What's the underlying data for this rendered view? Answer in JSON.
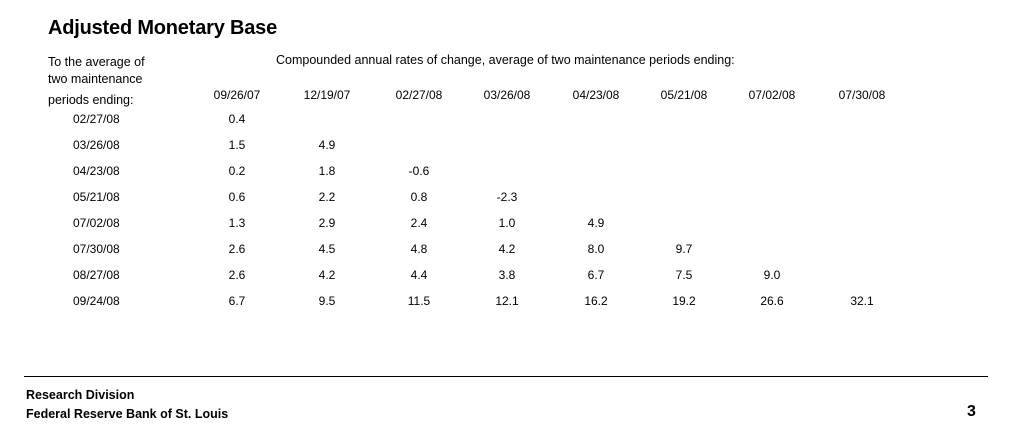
{
  "title": "Adjusted Monetary Base",
  "row_header": {
    "line1": "To the average of",
    "line2": "two maintenance",
    "line3": "periods ending:"
  },
  "column_header_description": "Compounded annual rates of change, average of two maintenance periods ending:",
  "table": {
    "columns": [
      "09/26/07",
      "12/19/07",
      "02/27/08",
      "03/26/08",
      "04/23/08",
      "05/21/08",
      "07/02/08",
      "07/30/08"
    ],
    "rows": [
      {
        "label": "02/27/08",
        "values": [
          "0.4",
          "",
          "",
          "",
          "",
          "",
          "",
          ""
        ]
      },
      {
        "label": "03/26/08",
        "values": [
          "1.5",
          "4.9",
          "",
          "",
          "",
          "",
          "",
          ""
        ]
      },
      {
        "label": "04/23/08",
        "values": [
          "0.2",
          "1.8",
          "-0.6",
          "",
          "",
          "",
          "",
          ""
        ]
      },
      {
        "label": "05/21/08",
        "values": [
          "0.6",
          "2.2",
          "0.8",
          "-2.3",
          "",
          "",
          "",
          ""
        ]
      },
      {
        "label": "07/02/08",
        "values": [
          "1.3",
          "2.9",
          "2.4",
          "1.0",
          "4.9",
          "",
          "",
          ""
        ]
      },
      {
        "label": "07/30/08",
        "values": [
          "2.6",
          "4.5",
          "4.8",
          "4.2",
          "8.0",
          "9.7",
          "",
          ""
        ]
      },
      {
        "label": "08/27/08",
        "values": [
          "2.6",
          "4.2",
          "4.4",
          "3.8",
          "6.7",
          "7.5",
          "9.0",
          ""
        ]
      },
      {
        "label": "09/24/08",
        "values": [
          "6.7",
          "9.5",
          "11.5",
          "12.1",
          "16.2",
          "19.2",
          "26.6",
          "32.1"
        ]
      }
    ]
  },
  "footer": {
    "line1": "Research Division",
    "line2": "Federal Reserve Bank of St. Louis",
    "page_number": "3"
  }
}
